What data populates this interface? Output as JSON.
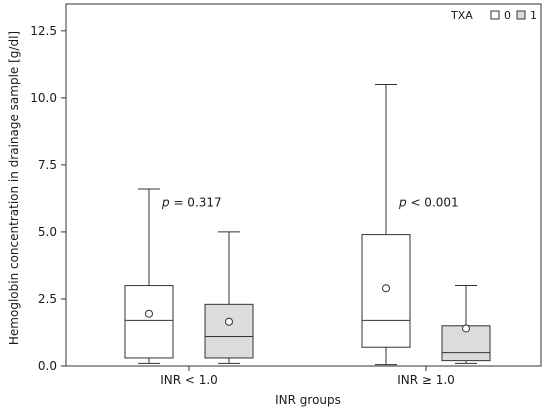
{
  "chart_data": {
    "type": "boxplot",
    "title": "",
    "xlabel": "INR groups",
    "ylabel": "Hemoglobin concentration in drainage sample [g/dl]",
    "ylim": [
      0,
      13.5
    ],
    "yticks": [
      0.0,
      2.5,
      5.0,
      7.5,
      10.0,
      12.5
    ],
    "ytick_labels": [
      "0.0",
      "2.5",
      "5.0",
      "7.5",
      "10.0",
      "12.5"
    ],
    "categories": [
      "INR < 1.0",
      "INR ≥ 1.0"
    ],
    "legend": {
      "title": "TXA",
      "placement": "top-right",
      "entries": [
        {
          "label": "0",
          "color": "#ffffff"
        },
        {
          "label": "1",
          "color": "#dcdcdc"
        }
      ]
    },
    "series": [
      {
        "name": "0",
        "color": "#ffffff",
        "boxes": [
          {
            "category": "INR < 1.0",
            "min": 0.1,
            "q1": 0.3,
            "median": 1.7,
            "q3": 3.0,
            "max": 6.6,
            "mean": 1.95
          },
          {
            "category": "INR ≥ 1.0",
            "min": 0.05,
            "q1": 0.7,
            "median": 1.7,
            "q3": 4.9,
            "max": 10.5,
            "mean": 2.9
          }
        ]
      },
      {
        "name": "1",
        "color": "#dcdcdc",
        "boxes": [
          {
            "category": "INR < 1.0",
            "min": 0.1,
            "q1": 0.3,
            "median": 1.1,
            "q3": 2.3,
            "max": 5.0,
            "mean": 1.65
          },
          {
            "category": "INR ≥ 1.0",
            "min": 0.1,
            "q1": 0.2,
            "median": 0.5,
            "q3": 1.5,
            "max": 3.0,
            "mean": 1.4
          }
        ]
      }
    ],
    "annotations": [
      {
        "category": "INR < 1.0",
        "p_symbol": "p",
        "text": " = 0.317",
        "y": 5.95
      },
      {
        "category": "INR ≥ 1.0",
        "p_symbol": "p",
        "text": " < 0.001",
        "y": 5.95
      }
    ]
  }
}
